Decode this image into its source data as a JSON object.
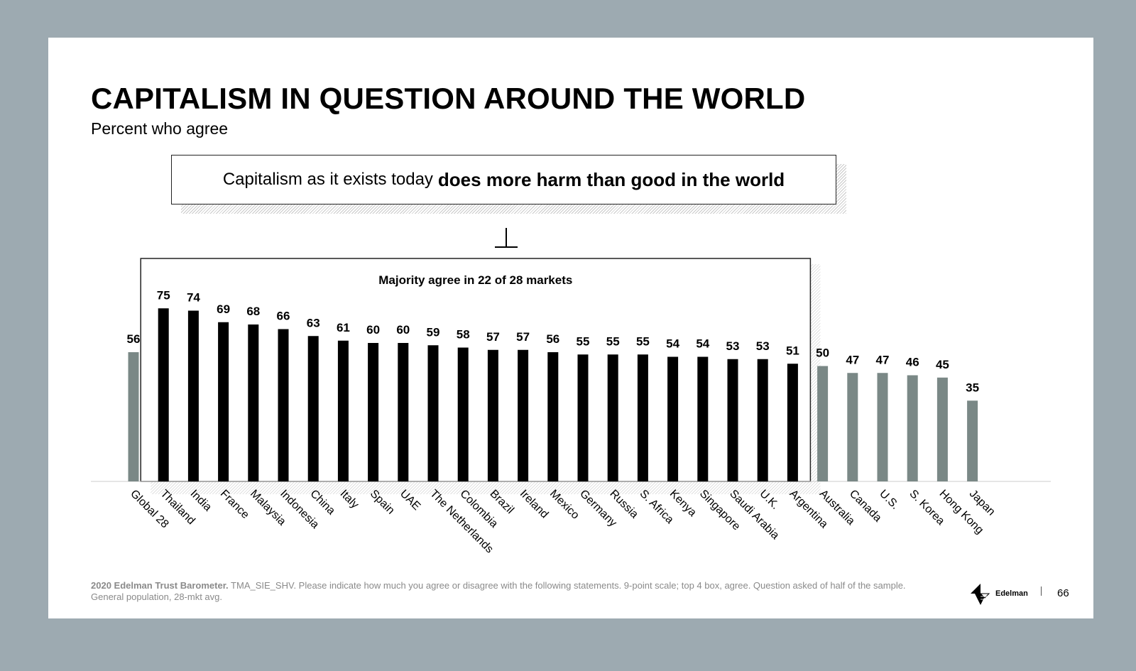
{
  "slide": {
    "title": "CAPITALISM IN QUESTION AROUND THE WORLD",
    "subtitle": "Percent who agree",
    "question_regular": "Capitalism as it exists today",
    "question_bold": "does more harm than good in the world",
    "majority_label": "Majority agree in 22 of 28 markets",
    "footnote_bold": "2020 Edelman Trust Barometer.",
    "footnote_text": "TMA_SIE_SHV. Please indicate how much you agree or disagree with the following statements. 9-point scale; top 4 box, agree. Question asked of half of the sample. General population, 28-mkt avg.",
    "brand": "Edelman",
    "page_number": "66"
  },
  "colors": {
    "majority_bar": "#000000",
    "other_bar": "#7a8886",
    "background": "#9daab1"
  },
  "chart_data": {
    "type": "bar",
    "title": "",
    "xlabel": "",
    "ylabel": "",
    "ylim": [
      0,
      100
    ],
    "categories": [
      "Global 28",
      "Thailand",
      "India",
      "France",
      "Malaysia",
      "Indonesia",
      "China",
      "Italy",
      "Spain",
      "UAE",
      "The Netherlands",
      "Colombia",
      "Brazil",
      "Ireland",
      "Mexico",
      "Germany",
      "Russia",
      "S. Africa",
      "Kenya",
      "Singapore",
      "Saudi Arabia",
      "U.K.",
      "Argentina",
      "Australia",
      "Canada",
      "U.S.",
      "S. Korea",
      "Hong Kong",
      "Japan"
    ],
    "values": [
      56,
      75,
      74,
      69,
      68,
      66,
      63,
      61,
      60,
      60,
      59,
      58,
      57,
      57,
      56,
      55,
      55,
      55,
      54,
      54,
      53,
      53,
      51,
      50,
      47,
      47,
      46,
      45,
      35
    ],
    "majority": [
      false,
      true,
      true,
      true,
      true,
      true,
      true,
      true,
      true,
      true,
      true,
      true,
      true,
      true,
      true,
      true,
      true,
      true,
      true,
      true,
      true,
      true,
      true,
      false,
      false,
      false,
      false,
      false,
      false
    ],
    "grid": false,
    "legend": "none"
  }
}
